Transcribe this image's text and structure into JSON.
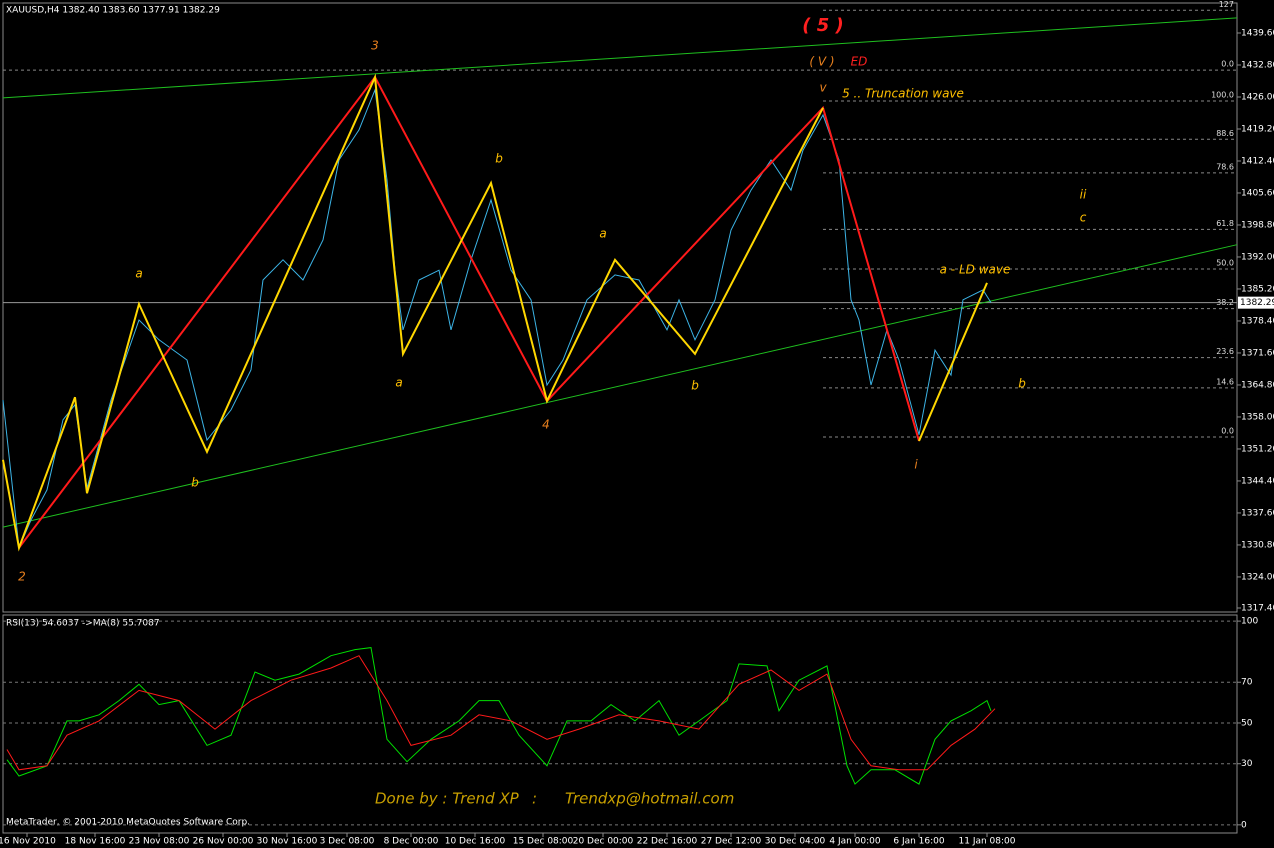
{
  "chart_data": [
    {
      "type": "line",
      "title": "XAUUSD,H4  1382.40 1383.60 1377.91 1382.29",
      "xlim": [
        0,
        308.5
      ],
      "ylim": [
        1316.55,
        1445.55
      ],
      "xticks": [
        {
          "value": 6,
          "label": "16 Nov 2010"
        },
        {
          "value": 23,
          "label": "18 Nov 16:00"
        },
        {
          "value": 39,
          "label": "23 Nov 08:00"
        },
        {
          "value": 55,
          "label": "26 Nov 00:00"
        },
        {
          "value": 71,
          "label": "30 Nov 16:00"
        },
        {
          "value": 86,
          "label": "3 Dec 08:00"
        },
        {
          "value": 102,
          "label": "8 Dec 00:00"
        },
        {
          "value": 118,
          "label": "10 Dec 16:00"
        },
        {
          "value": 135,
          "label": "15 Dec 08:00"
        },
        {
          "value": 150,
          "label": "20 Dec 00:00"
        },
        {
          "value": 166,
          "label": "22 Dec 16:00"
        },
        {
          "value": 182,
          "label": "27 Dec 12:00"
        },
        {
          "value": 198,
          "label": "30 Dec 04:00"
        },
        {
          "value": 213,
          "label": "4 Jan 00:00"
        },
        {
          "value": 229,
          "label": "6 Jan 16:00"
        },
        {
          "value": 246,
          "label": "11 Jan 08:00"
        }
      ],
      "yticks": [
        {
          "value": 1439.6,
          "label": "1439.60"
        },
        {
          "value": 1432.8,
          "label": "1432.80"
        },
        {
          "value": 1426,
          "label": "1426.00"
        },
        {
          "value": 1419.2,
          "label": "1419.20"
        },
        {
          "value": 1412.4,
          "label": "1412.40"
        },
        {
          "value": 1405.6,
          "label": "1405.60"
        },
        {
          "value": 1398.8,
          "label": "1398.80"
        },
        {
          "value": 1392,
          "label": "1392.00"
        },
        {
          "value": 1385.2,
          "label": "1385.20"
        },
        {
          "value": 1378.4,
          "label": "1378.40"
        },
        {
          "value": 1371.6,
          "label": "1371.60"
        },
        {
          "value": 1364.8,
          "label": "1364.80"
        },
        {
          "value": 1358,
          "label": "1358.00"
        },
        {
          "value": 1351.2,
          "label": "1351.20"
        },
        {
          "value": 1344.4,
          "label": "1344.40"
        },
        {
          "value": 1337.6,
          "label": "1337.60"
        },
        {
          "value": 1330.8,
          "label": "1330.80"
        },
        {
          "value": 1324,
          "label": "1324.00"
        },
        {
          "value": 1317.4,
          "label": "1317.40"
        }
      ],
      "series": [
        {
          "color": "#3cb4e6",
          "x": [
            0,
            4,
            7,
            11,
            15,
            18,
            21,
            27,
            34,
            39,
            46,
            51,
            57,
            62,
            65,
            70,
            75,
            80,
            84,
            89,
            93,
            96,
            98,
            100,
            104,
            109,
            112,
            117,
            122,
            127,
            132,
            136,
            140,
            146,
            153,
            159,
            166,
            169,
            173,
            178,
            182,
            187,
            192,
            197,
            200,
            205,
            209,
            212,
            214,
            217,
            221,
            224,
            229,
            233,
            237,
            240,
            245,
            247
          ],
          "values": [
            1361.6,
            1330.2,
            1336.1,
            1342.5,
            1357.4,
            1360.6,
            1342.9,
            1361.6,
            1378.6,
            1374.4,
            1370.1,
            1353.1,
            1359.5,
            1368.0,
            1387.1,
            1391.4,
            1387.1,
            1395.6,
            1412.6,
            1419.0,
            1427.5,
            1408.4,
            1389.2,
            1376.5,
            1387.1,
            1389.2,
            1376.5,
            1391.4,
            1404.1,
            1389.2,
            1382.9,
            1364.8,
            1370.1,
            1382.9,
            1388.2,
            1387.1,
            1376.5,
            1382.9,
            1374.4,
            1382.9,
            1397.7,
            1406.2,
            1412.6,
            1406.2,
            1414.7,
            1422.2,
            1412.6,
            1382.9,
            1378.6,
            1364.8,
            1376.5,
            1370.1,
            1354.2,
            1372.2,
            1366.9,
            1382.9,
            1385.0,
            1382.3
          ]
        }
      ],
      "last_price": {
        "value": 1382.29,
        "label": "1382.29"
      },
      "waves": [
        {
          "color": "#ff1a1a",
          "x": [
            4,
            93,
            136,
            205,
            229
          ],
          "values": [
            1330.2,
            1430.2,
            1361.4,
            1423.7,
            1352.9
          ]
        },
        {
          "color": "#ffd700",
          "x": [
            0,
            4,
            18,
            21,
            34,
            51,
            93,
            100,
            122,
            136,
            153,
            173,
            205,
            217,
            229,
            246
          ],
          "values": [
            1348.9,
            1330.2,
            1362.2,
            1341.8,
            1382.0,
            1350.6,
            1430.2,
            1371.4,
            1407.7,
            1361.4,
            1391.4,
            1371.4,
            1423.7,
            null,
            1352.9,
            1386.5
          ]
        }
      ],
      "trendlines": [
        {
          "color": "#1fbf1f",
          "x": [
            0,
            308.5
          ],
          "values": [
            1425.8,
            1442.8
          ]
        },
        {
          "color": "#1fbf1f",
          "x": [
            0,
            308.5
          ],
          "values": [
            1334.6,
            1394.6
          ]
        }
      ],
      "fib": {
        "high": 1425.15,
        "low": 1353.75,
        "start": 205,
        "levels": [
          {
            "value": 127,
            "label": "127"
          },
          {
            "value": 100,
            "label": "100.0"
          },
          {
            "value": 88.6,
            "label": "88.6"
          },
          {
            "value": 78.6,
            "label": "78.6"
          },
          {
            "value": 61.8,
            "label": "61.8"
          },
          {
            "value": 50,
            "label": "50.0"
          },
          {
            "value": 38.2,
            "label": "38.2"
          },
          {
            "value": 23.6,
            "label": "23.6"
          },
          {
            "value": 14.6,
            "label": "14.6"
          },
          {
            "value": 0,
            "label": "0.0"
          }
        ]
      },
      "ref_line": {
        "price": 1431.7,
        "level": {
          "value": 0,
          "label": "0.0"
        }
      },
      "annotations": [
        "2",
        "a",
        "b",
        "3",
        "b",
        "a",
        "a",
        "4",
        "b",
        "( 5 )",
        "( V )",
        "ED",
        "v",
        "5  .. Truncation wave",
        "ii",
        "c",
        "a - LD wave",
        "i",
        "b"
      ]
    },
    {
      "type": "line",
      "title": "RSI(13) 54.6037  ->MA(8) 55.7087",
      "xlim": [
        0,
        308.5
      ],
      "ylim": [
        -4,
        103
      ],
      "yticks": [
        100,
        70,
        50,
        30,
        0
      ],
      "series": [
        {
          "color": "#00e000",
          "x": [
            1,
            4,
            11,
            16,
            19,
            24,
            29,
            34,
            39,
            44,
            51,
            57,
            63,
            68,
            74,
            82,
            88,
            92,
            96,
            101,
            107,
            114,
            119,
            124,
            129,
            136,
            141,
            147,
            152,
            158,
            164,
            169,
            174,
            181,
            184,
            191,
            194,
            199,
            206,
            211,
            213,
            217,
            223,
            229,
            233,
            237,
            242,
            246,
            247
          ],
          "values": [
            32,
            24,
            29,
            51,
            51,
            54,
            61,
            69,
            59,
            61,
            39,
            44,
            75,
            71,
            74,
            83,
            86,
            87,
            42,
            31,
            42,
            51,
            61,
            61,
            44,
            29,
            51,
            51,
            59,
            51,
            61,
            44,
            51,
            61,
            79,
            78,
            56,
            71,
            78,
            29,
            20,
            27,
            27,
            20,
            42,
            51,
            56,
            61,
            56
          ]
        },
        {
          "color": "#ff1a1a",
          "x": [
            1,
            4,
            11,
            16,
            24,
            34,
            44,
            53,
            62,
            72,
            82,
            89,
            96,
            102,
            112,
            119,
            127,
            136,
            144,
            154,
            164,
            174,
            184,
            192,
            199,
            206,
            212,
            217,
            224,
            231,
            237,
            243,
            248
          ],
          "values": [
            37,
            27,
            29,
            44,
            51,
            66,
            61,
            47,
            61,
            71,
            77,
            83,
            61,
            39,
            44,
            54,
            51,
            42,
            47,
            54,
            51,
            47,
            69,
            76,
            66,
            74,
            42,
            29,
            27,
            27,
            39,
            47,
            57
          ]
        }
      ]
    }
  ],
  "watermark": "MetaTrader, © 2001-2010 MetaQuotes Software Corp.",
  "signature": [
    "Done by : Trend XP",
    ":",
    "Trendxp@hotmail.com"
  ]
}
